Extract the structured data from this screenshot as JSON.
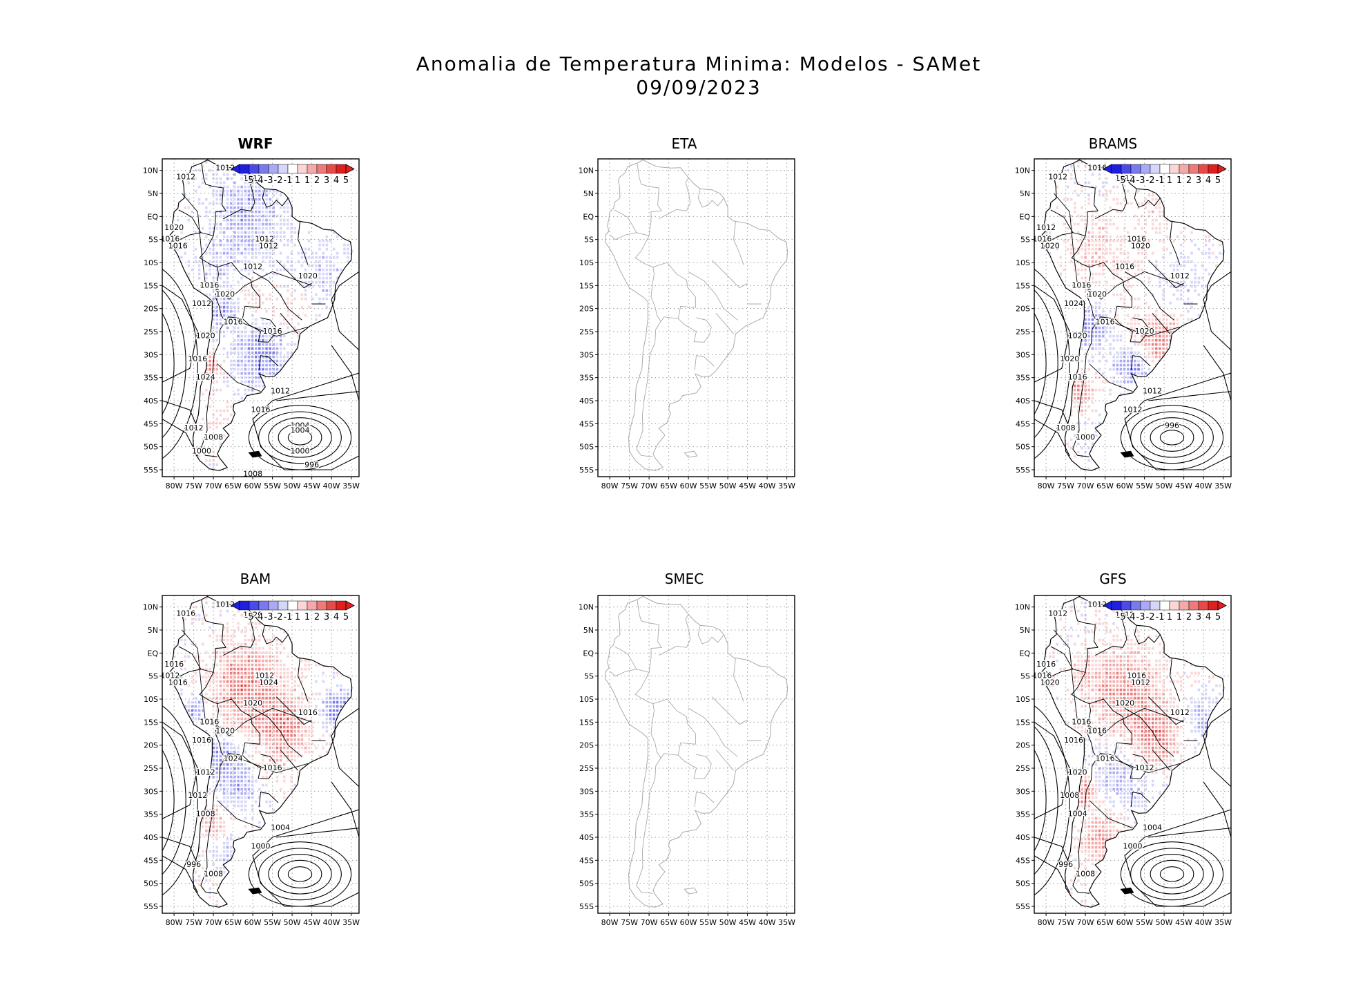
{
  "title": {
    "line1": "Anomalia de Temperatura Minima: Modelos - SAMet",
    "line2": "09/09/2023"
  },
  "axes": {
    "lat_labels": [
      "10N",
      "5N",
      "EQ",
      "5S",
      "10S",
      "15S",
      "20S",
      "25S",
      "30S",
      "35S",
      "40S",
      "45S",
      "50S",
      "55S"
    ],
    "lon_labels": [
      "80W",
      "75W",
      "70W",
      "65W",
      "60W",
      "55W",
      "50W",
      "45W",
      "40W",
      "35W"
    ]
  },
  "colorbar": {
    "labels": [
      "-5",
      "-4",
      "-3",
      "-2",
      "-1",
      "1",
      "1",
      "2",
      "3",
      "4",
      "5"
    ],
    "colors": [
      "#1f1fe0",
      "#4a4ae8",
      "#7a7af0",
      "#a9a9f6",
      "#d6d6fb",
      "#ffffff",
      "#fbd6d6",
      "#f6a9a9",
      "#f07a7a",
      "#e84a4a",
      "#e01f1f"
    ]
  },
  "panels": [
    {
      "name": "WRF",
      "has_data": true,
      "isobars": [
        "1012",
        "1012",
        "1012",
        "1020",
        "1016",
        "1016",
        "1012",
        "1012",
        "1012",
        "1020",
        "1016",
        "1020",
        "1012",
        "1016",
        "1020",
        "1016",
        "1016",
        "1024",
        "1012",
        "1016",
        "1012",
        "1008",
        "1004",
        "1004",
        "1000",
        "1000",
        "996",
        "1008"
      ]
    },
    {
      "name": "ETA",
      "has_data": false,
      "isobars": []
    },
    {
      "name": "BRAMS",
      "has_data": true,
      "isobars": [
        "1016",
        "1012",
        "1012",
        "1012",
        "1016",
        "1020",
        "1016",
        "1020",
        "1016",
        "1012",
        "1016",
        "1020",
        "1024",
        "1016",
        "1020",
        "1020",
        "1020",
        "1016",
        "1012",
        "1012",
        "1008",
        "1000",
        "996"
      ]
    },
    {
      "name": "BAM",
      "has_data": true,
      "isobars": [
        "1012",
        "1016",
        "1020",
        "1016",
        "1012",
        "1016",
        "1012",
        "1024",
        "1020",
        "1016",
        "1016",
        "1020",
        "1016",
        "1024",
        "1012",
        "1016",
        "1012",
        "1008",
        "1004",
        "1000",
        "996",
        "1008"
      ]
    },
    {
      "name": "SMEC",
      "has_data": false,
      "isobars": []
    },
    {
      "name": "GFS",
      "has_data": true,
      "isobars": [
        "1012",
        "1012",
        "1012",
        "1016",
        "1016",
        "1020",
        "1016",
        "1012",
        "1020",
        "1012",
        "1016",
        "1016",
        "1016",
        "1016",
        "1020",
        "1012",
        "1008",
        "1004",
        "1004",
        "1000",
        "996",
        "1008"
      ]
    }
  ]
}
